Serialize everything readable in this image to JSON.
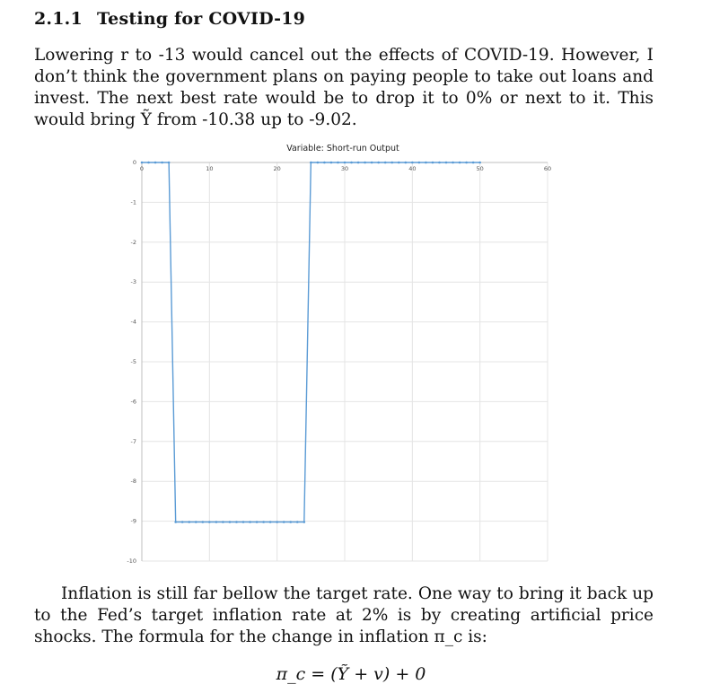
{
  "section": {
    "number": "2.1.1",
    "title": "Testing for COVID-19"
  },
  "paragraph1": "Lowering r to -13 would cancel out the effects of COVID-19. However, I don’t think the government plans on paying people to take out loans and invest. The next best rate would be to drop it to 0% or next to it. This would bring Ỹ from -10.38 up to -9.02.",
  "paragraph2": "Inflation is still far bellow the target rate. One way to bring it back up to the Fed’s target inflation rate at 2% is by creating artificial price shocks. The formula for the change in inflation π_c is:",
  "equation": "π_c = (Ỹ + v) + 0",
  "chart_data": {
    "type": "line",
    "title": "Variable: Short-run Output",
    "xlabel": "",
    "ylabel": "",
    "xlim": [
      0,
      60
    ],
    "ylim": [
      -10,
      0
    ],
    "x_ticks": [
      "0",
      "10",
      "20",
      "30",
      "40",
      "50",
      "60"
    ],
    "y_ticks": [
      "0",
      "-1",
      "-2",
      "-3",
      "-4",
      "-5",
      "-6",
      "-7",
      "-8",
      "-9",
      "-10"
    ],
    "grid": true,
    "legend": "none",
    "series_color": "#5b9bd5",
    "series": [
      {
        "x": [
          0,
          1,
          2,
          3,
          4,
          5,
          6,
          7,
          8,
          9,
          10,
          11,
          12,
          13,
          14,
          15,
          16,
          17,
          18,
          19,
          20,
          21,
          22,
          23,
          24,
          25,
          26,
          27,
          28,
          29,
          30,
          31,
          32,
          33,
          34,
          35,
          36,
          37,
          38,
          39,
          40,
          41,
          42,
          43,
          44,
          45,
          46,
          47,
          48,
          49,
          50
        ],
        "y": [
          0,
          0,
          0,
          0,
          0,
          -9.02,
          -9.02,
          -9.02,
          -9.02,
          -9.02,
          -9.02,
          -9.02,
          -9.02,
          -9.02,
          -9.02,
          -9.02,
          -9.02,
          -9.02,
          -9.02,
          -9.02,
          -9.02,
          -9.02,
          -9.02,
          -9.02,
          -9.02,
          0,
          0,
          0,
          0,
          0,
          0,
          0,
          0,
          0,
          0,
          0,
          0,
          0,
          0,
          0,
          0,
          0,
          0,
          0,
          0,
          0,
          0,
          0,
          0,
          0,
          0
        ]
      }
    ]
  }
}
